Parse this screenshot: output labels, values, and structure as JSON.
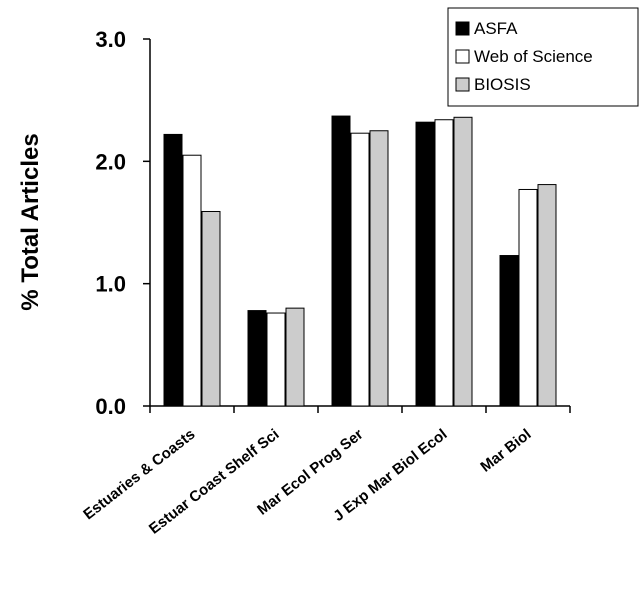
{
  "chart_data": {
    "type": "bar",
    "title": "",
    "xlabel": "",
    "ylabel": "% Total Articles",
    "ylim": [
      0,
      3
    ],
    "yticks": [
      "0.0",
      "1.0",
      "2.0",
      "3.0"
    ],
    "grid": false,
    "legend_position": "top-right",
    "categories": [
      "Estuaries & Coasts",
      "Estuar Coast Shelf Sci",
      "Mar Ecol Prog Ser",
      "J Exp Mar Biol Ecol",
      "Mar Biol"
    ],
    "series": [
      {
        "name": "ASFA",
        "color": "#000000",
        "values": [
          2.22,
          0.78,
          2.37,
          2.32,
          1.23
        ]
      },
      {
        "name": "Web of Science",
        "color": "#ffffff",
        "values": [
          2.05,
          0.76,
          2.23,
          2.34,
          1.77
        ]
      },
      {
        "name": "BIOSIS",
        "color": "#cccccc",
        "values": [
          1.59,
          0.8,
          2.25,
          2.36,
          1.81
        ]
      }
    ]
  }
}
